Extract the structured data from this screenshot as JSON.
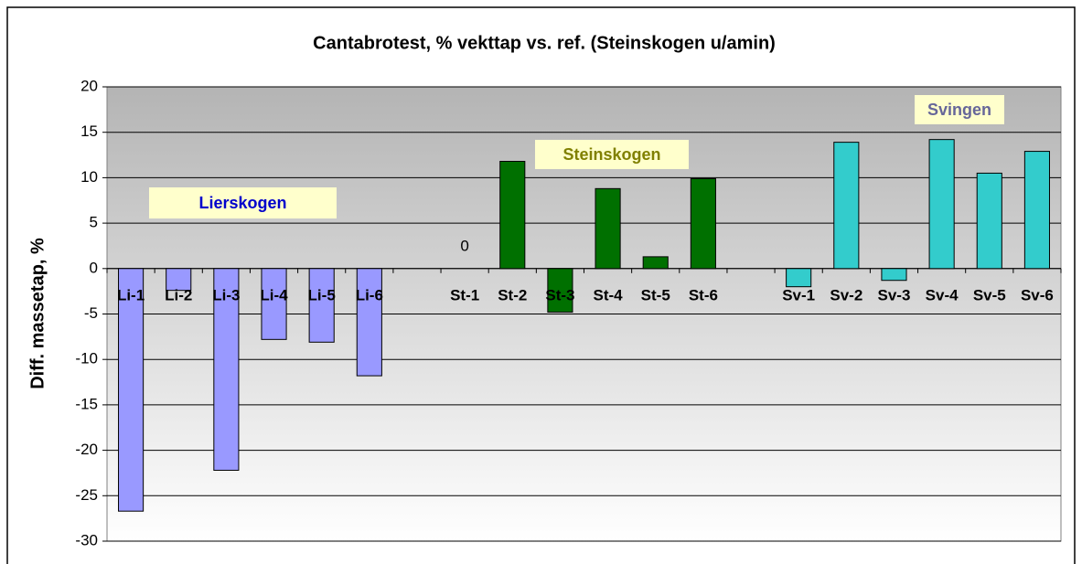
{
  "chart_data": {
    "type": "bar",
    "title": "Cantabrotest,  % vekttap vs. ref. (Steinskogen u/amin)",
    "y_label": "Diff. massetap, %",
    "categories": [
      "Li-1",
      "Li-2",
      "Li-3",
      "Li-4",
      "Li-5",
      "Li-6",
      null,
      "St-1",
      "St-2",
      "St-3",
      "St-4",
      "St-5",
      "St-6",
      null,
      "Sv-1",
      "Sv-2",
      "Sv-3",
      "Sv-4",
      "Sv-5",
      "Sv-6"
    ],
    "values": [
      -26.7,
      -2.4,
      -22.2,
      -7.8,
      -8.1,
      -11.8,
      null,
      0,
      11.8,
      -4.8,
      8.8,
      1.3,
      9.9,
      null,
      -2.0,
      13.9,
      -1.3,
      14.2,
      10.5,
      12.9
    ],
    "value_labels": [
      null,
      null,
      null,
      null,
      null,
      null,
      null,
      "0",
      null,
      null,
      null,
      null,
      null,
      null,
      null,
      null,
      null,
      null,
      null,
      null
    ],
    "colors": [
      "#9999ff",
      "#9999ff",
      "#9999ff",
      "#9999ff",
      "#9999ff",
      "#9999ff",
      null,
      "#007000",
      "#007000",
      "#007000",
      "#007000",
      "#007000",
      "#007000",
      null,
      "#33cccc",
      "#33cccc",
      "#33cccc",
      "#33cccc",
      "#33cccc",
      "#33cccc"
    ],
    "annotations": [
      {
        "text": "Lierskogen",
        "color": "#0000cc"
      },
      {
        "text": "Steinskogen",
        "color": "#808000"
      },
      {
        "text": "Svingen",
        "color": "#666699"
      }
    ],
    "ylim": [
      -30,
      20
    ],
    "yticks": [
      -30,
      -25,
      -20,
      -15,
      -10,
      -5,
      0,
      5,
      10,
      15,
      20
    ],
    "grid": true
  }
}
